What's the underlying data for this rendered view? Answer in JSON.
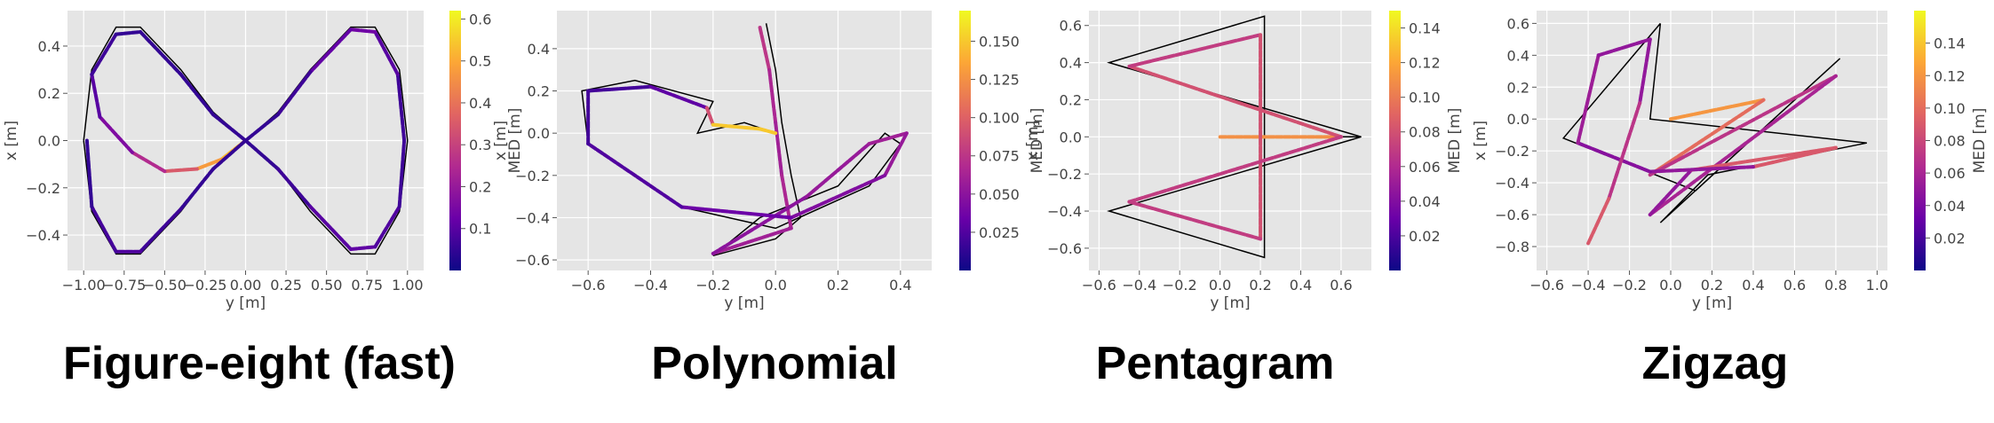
{
  "panels": [
    {
      "title": "Figure-eight (fast)"
    },
    {
      "title": "Polynomial"
    },
    {
      "title": "Pentagram"
    },
    {
      "title": "Zigzag"
    }
  ],
  "colormap": [
    "#0d0887",
    "#6a00a8",
    "#b12a90",
    "#e16462",
    "#fca636",
    "#f0f921"
  ],
  "chart_data": [
    {
      "type": "line",
      "title": "Figure-eight (fast)",
      "xlabel": "y [m]",
      "ylabel": "x [m]",
      "colorbar_label": "MED [m]",
      "xlim": [
        -1.1,
        1.1
      ],
      "ylim": [
        -0.55,
        0.55
      ],
      "clim": [
        0,
        0.62
      ],
      "xticks": [
        -1.0,
        -0.75,
        -0.5,
        -0.25,
        0.0,
        0.25,
        0.5,
        0.75,
        1.0
      ],
      "xticklabels": [
        "−1.00",
        "−0.75",
        "−0.50",
        "−0.25",
        "0.00",
        "0.25",
        "0.50",
        "0.75",
        "1.00"
      ],
      "yticks": [
        -0.4,
        -0.2,
        0.0,
        0.2,
        0.4
      ],
      "yticklabels": [
        "−0.4",
        "−0.2",
        "0.0",
        "0.2",
        "0.4"
      ],
      "cticks": [
        0.1,
        0.2,
        0.3,
        0.4,
        0.5,
        0.6
      ],
      "cticklabels": [
        "0.1",
        "0.2",
        "0.3",
        "0.4",
        "0.5",
        "0.6"
      ],
      "grid": true,
      "reference": [
        [
          -1.0,
          0.0
        ],
        [
          -0.95,
          0.3
        ],
        [
          -0.8,
          0.48
        ],
        [
          -0.65,
          0.48
        ],
        [
          -0.4,
          0.3
        ],
        [
          -0.2,
          0.12
        ],
        [
          0.0,
          0.0
        ],
        [
          0.2,
          -0.12
        ],
        [
          0.4,
          -0.3
        ],
        [
          0.65,
          -0.48
        ],
        [
          0.8,
          -0.48
        ],
        [
          0.95,
          -0.3
        ],
        [
          1.0,
          0.0
        ],
        [
          0.95,
          0.3
        ],
        [
          0.8,
          0.48
        ],
        [
          0.65,
          0.48
        ],
        [
          0.4,
          0.3
        ],
        [
          0.2,
          0.12
        ],
        [
          0.0,
          0.0
        ],
        [
          -0.2,
          -0.12
        ],
        [
          -0.4,
          -0.3
        ],
        [
          -0.65,
          -0.48
        ],
        [
          -0.8,
          -0.48
        ],
        [
          -0.95,
          -0.3
        ],
        [
          -1.0,
          0.0
        ]
      ],
      "estimated": [
        [
          0.0,
          0.0,
          0.5
        ],
        [
          -0.15,
          -0.08,
          0.55
        ],
        [
          -0.3,
          -0.12,
          0.4
        ],
        [
          -0.5,
          -0.13,
          0.3
        ],
        [
          -0.7,
          -0.05,
          0.2
        ],
        [
          -0.9,
          0.1,
          0.12
        ],
        [
          -0.95,
          0.28,
          0.08
        ],
        [
          -0.8,
          0.45,
          0.05
        ],
        [
          -0.65,
          0.46,
          0.05
        ],
        [
          -0.4,
          0.28,
          0.05
        ],
        [
          -0.2,
          0.11,
          0.05
        ],
        [
          0.0,
          0.0,
          0.05
        ],
        [
          0.2,
          -0.12,
          0.05
        ],
        [
          0.4,
          -0.28,
          0.08
        ],
        [
          0.65,
          -0.46,
          0.12
        ],
        [
          0.8,
          -0.45,
          0.1
        ],
        [
          0.95,
          -0.28,
          0.08
        ],
        [
          0.98,
          0.0,
          0.05
        ],
        [
          0.94,
          0.28,
          0.08
        ],
        [
          0.8,
          0.46,
          0.12
        ],
        [
          0.65,
          0.47,
          0.15
        ],
        [
          0.4,
          0.29,
          0.08
        ],
        [
          0.2,
          0.11,
          0.05
        ],
        [
          0.0,
          0.0,
          0.05
        ],
        [
          -0.2,
          -0.12,
          0.05
        ],
        [
          -0.4,
          -0.29,
          0.05
        ],
        [
          -0.65,
          -0.47,
          0.08
        ],
        [
          -0.8,
          -0.47,
          0.1
        ],
        [
          -0.95,
          -0.28,
          0.05
        ],
        [
          -0.98,
          0.0,
          0.05
        ]
      ]
    },
    {
      "type": "line",
      "title": "Polynomial",
      "xlabel": "y [m]",
      "ylabel": "x [m]",
      "colorbar_label": "MED [m]",
      "xlim": [
        -0.7,
        0.5
      ],
      "ylim": [
        -0.65,
        0.58
      ],
      "clim": [
        0,
        0.17
      ],
      "xticks": [
        -0.6,
        -0.4,
        -0.2,
        0.0,
        0.2,
        0.4
      ],
      "xticklabels": [
        "−0.6",
        "−0.4",
        "−0.2",
        "0.0",
        "0.2",
        "0.4"
      ],
      "yticks": [
        -0.6,
        -0.4,
        -0.2,
        0.0,
        0.2,
        0.4
      ],
      "yticklabels": [
        "−0.6",
        "−0.4",
        "−0.2",
        "0.0",
        "0.2",
        "0.4"
      ],
      "cticks": [
        0.025,
        0.05,
        0.075,
        0.1,
        0.125,
        0.15
      ],
      "cticklabels": [
        "0.025",
        "0.050",
        "0.075",
        "0.100",
        "0.125",
        "0.150"
      ],
      "grid": true,
      "reference": [
        [
          -0.03,
          0.52
        ],
        [
          0.0,
          0.3
        ],
        [
          0.02,
          0.05
        ],
        [
          0.05,
          -0.2
        ],
        [
          0.08,
          -0.4
        ],
        [
          0.0,
          -0.5
        ],
        [
          -0.2,
          -0.58
        ],
        [
          -0.05,
          -0.4
        ],
        [
          0.2,
          -0.25
        ],
        [
          0.35,
          0.0
        ],
        [
          0.4,
          -0.05
        ],
        [
          0.3,
          -0.25
        ],
        [
          0.0,
          -0.45
        ],
        [
          -0.3,
          -0.35
        ],
        [
          -0.6,
          -0.05
        ],
        [
          -0.62,
          0.2
        ],
        [
          -0.45,
          0.25
        ],
        [
          -0.2,
          0.15
        ],
        [
          -0.25,
          0.0
        ],
        [
          -0.1,
          0.05
        ],
        [
          0.0,
          0.0
        ]
      ],
      "estimated": [
        [
          -0.05,
          0.5,
          0.08
        ],
        [
          -0.02,
          0.3,
          0.07
        ],
        [
          0.0,
          0.05,
          0.06
        ],
        [
          0.02,
          -0.2,
          0.06
        ],
        [
          0.05,
          -0.45,
          0.07
        ],
        [
          -0.2,
          -0.57,
          0.05
        ],
        [
          0.1,
          -0.3,
          0.05
        ],
        [
          0.3,
          -0.05,
          0.06
        ],
        [
          0.42,
          0.0,
          0.06
        ],
        [
          0.35,
          -0.2,
          0.05
        ],
        [
          0.05,
          -0.4,
          0.04
        ],
        [
          -0.3,
          -0.35,
          0.03
        ],
        [
          -0.6,
          -0.05,
          0.02
        ],
        [
          -0.6,
          0.2,
          0.02
        ],
        [
          -0.4,
          0.22,
          0.02
        ],
        [
          -0.22,
          0.12,
          0.04
        ],
        [
          -0.2,
          0.04,
          0.14
        ],
        [
          -0.05,
          0.02,
          0.16
        ],
        [
          0.0,
          0.0,
          0.14
        ]
      ]
    },
    {
      "type": "line",
      "title": "Pentagram",
      "xlabel": "y [m]",
      "ylabel": "x [m]",
      "colorbar_label": "MED [m]",
      "xlim": [
        -0.65,
        0.75
      ],
      "ylim": [
        -0.72,
        0.68
      ],
      "clim": [
        0,
        0.15
      ],
      "xticks": [
        -0.6,
        -0.4,
        -0.2,
        0.0,
        0.2,
        0.4,
        0.6
      ],
      "xticklabels": [
        "−0.6",
        "−0.4",
        "−0.2",
        "0.0",
        "0.2",
        "0.4",
        "0.6"
      ],
      "yticks": [
        -0.6,
        -0.4,
        -0.2,
        0.0,
        0.2,
        0.4,
        0.6
      ],
      "yticklabels": [
        "−0.6",
        "−0.4",
        "−0.2",
        "0.0",
        "0.2",
        "0.4",
        "0.6"
      ],
      "cticks": [
        0.02,
        0.04,
        0.06,
        0.08,
        0.1,
        0.12,
        0.14
      ],
      "cticklabels": [
        "0.02",
        "0.04",
        "0.06",
        "0.08",
        "0.10",
        "0.12",
        "0.14"
      ],
      "grid": true,
      "reference": [
        [
          0.0,
          0.0
        ],
        [
          0.7,
          0.0
        ],
        [
          -0.55,
          0.4
        ],
        [
          0.22,
          0.65
        ],
        [
          0.22,
          -0.65
        ],
        [
          -0.55,
          -0.4
        ],
        [
          0.7,
          0.0
        ]
      ],
      "estimated": [
        [
          0.0,
          0.0,
          0.12
        ],
        [
          0.6,
          0.0,
          0.1
        ],
        [
          -0.45,
          0.38,
          0.06
        ],
        [
          0.2,
          0.55,
          0.08
        ],
        [
          0.2,
          -0.55,
          0.08
        ],
        [
          -0.45,
          -0.35,
          0.06
        ],
        [
          0.6,
          0.0,
          0.08
        ]
      ]
    },
    {
      "type": "line",
      "title": "Zigzag",
      "xlabel": "y [m]",
      "ylabel": "x [m]",
      "colorbar_label": "MED [m]",
      "xlim": [
        -0.65,
        1.05
      ],
      "ylim": [
        -0.95,
        0.68
      ],
      "clim": [
        0,
        0.16
      ],
      "xticks": [
        -0.6,
        -0.4,
        -0.2,
        0.0,
        0.2,
        0.4,
        0.6,
        0.8,
        1.0
      ],
      "xticklabels": [
        "−0.6",
        "−0.4",
        "−0.2",
        "0.0",
        "0.2",
        "0.4",
        "0.6",
        "0.8",
        "1.0"
      ],
      "yticks": [
        -0.8,
        -0.6,
        -0.4,
        -0.2,
        0.0,
        0.2,
        0.4,
        0.6
      ],
      "yticklabels": [
        "−0.8",
        "−0.6",
        "−0.4",
        "−0.2",
        "0.0",
        "0.2",
        "0.4",
        "0.6"
      ],
      "cticks": [
        0.02,
        0.04,
        0.06,
        0.08,
        0.1,
        0.12,
        0.14
      ],
      "cticklabels": [
        "0.02",
        "0.04",
        "0.06",
        "0.08",
        "0.10",
        "0.12",
        "0.14"
      ],
      "grid": true,
      "reference": [
        [
          -0.05,
          0.6
        ],
        [
          -0.52,
          -0.12
        ],
        [
          0.12,
          -0.45
        ],
        [
          0.82,
          0.38
        ],
        [
          -0.05,
          -0.65
        ],
        [
          0.18,
          -0.35
        ],
        [
          0.95,
          -0.15
        ],
        [
          -0.1,
          0.0
        ],
        [
          -0.05,
          0.6
        ]
      ],
      "estimated": [
        [
          0.0,
          0.0,
          0.1
        ],
        [
          0.45,
          0.12,
          0.14
        ],
        [
          -0.1,
          -0.35,
          0.06
        ],
        [
          0.8,
          0.27,
          0.08
        ],
        [
          -0.1,
          -0.6,
          0.04
        ],
        [
          0.1,
          -0.32,
          0.06
        ],
        [
          0.8,
          -0.18,
          0.12
        ],
        [
          0.4,
          -0.3,
          0.06
        ],
        [
          -0.1,
          -0.33,
          0.04
        ],
        [
          -0.45,
          -0.15,
          0.05
        ],
        [
          -0.35,
          0.4,
          0.06
        ],
        [
          -0.1,
          0.5,
          0.04
        ],
        [
          -0.15,
          0.1,
          0.06
        ],
        [
          -0.3,
          -0.5,
          0.08
        ],
        [
          -0.4,
          -0.78,
          0.1
        ]
      ]
    }
  ]
}
